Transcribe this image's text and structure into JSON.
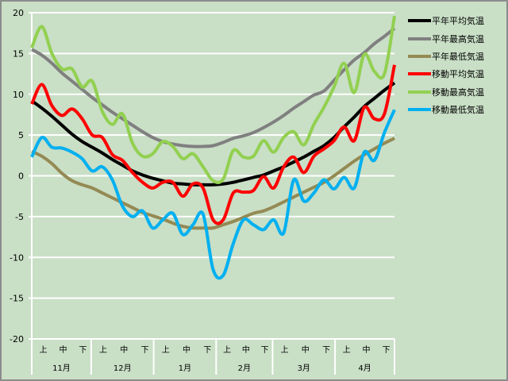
{
  "chart_data": {
    "type": "line",
    "title": "",
    "xlabel": "",
    "ylabel": "",
    "ylim": [
      -20,
      20
    ],
    "yticks": [
      "20",
      "15",
      "10",
      "5",
      "0",
      "-5",
      "-10",
      "-15",
      "-20"
    ],
    "ytick_values": [
      20,
      15,
      10,
      5,
      0,
      -5,
      -10,
      -15,
      -20
    ],
    "grid": true,
    "legend_position": "right",
    "x_decade_labels": [
      "上",
      "中",
      "下"
    ],
    "x_months": [
      "11月",
      "12月",
      "1月",
      "2月",
      "3月",
      "4月"
    ],
    "x": [
      "11/01",
      "11/06",
      "11/11",
      "11/16",
      "11/21",
      "11/26",
      "12/01",
      "12/06",
      "12/11",
      "12/16",
      "12/21",
      "12/26",
      "12/31",
      "01/05",
      "01/10",
      "01/15",
      "01/20",
      "01/25",
      "01/30",
      "02/04",
      "02/09",
      "02/14",
      "02/19",
      "02/24",
      "03/01",
      "03/06",
      "03/11",
      "03/16",
      "03/21",
      "03/26",
      "03/31",
      "04/05",
      "04/10",
      "04/15",
      "04/20",
      "04/25",
      "04/30"
    ],
    "series": [
      {
        "name": "平年平均気温",
        "color": "#000000",
        "values": [
          9.2,
          8.3,
          7.3,
          6.2,
          5.1,
          4.2,
          3.5,
          2.8,
          2.0,
          1.3,
          0.6,
          0.1,
          -0.3,
          -0.6,
          -0.9,
          -1.0,
          -1.1,
          -1.1,
          -1.1,
          -1.0,
          -0.8,
          -0.5,
          -0.2,
          0.1,
          0.6,
          1.1,
          1.7,
          2.3,
          3.0,
          3.7,
          4.7,
          6.0,
          7.2,
          8.5,
          9.5,
          10.5,
          11.4
        ]
      },
      {
        "name": "平年最高気温",
        "color": "#808080",
        "values": [
          15.5,
          14.8,
          13.8,
          12.6,
          11.6,
          10.6,
          9.6,
          8.7,
          7.8,
          7.0,
          6.2,
          5.4,
          4.7,
          4.2,
          3.9,
          3.7,
          3.6,
          3.6,
          3.7,
          4.1,
          4.6,
          4.9,
          5.3,
          5.9,
          6.6,
          7.4,
          8.3,
          9.1,
          9.9,
          10.4,
          11.7,
          13.0,
          14.2,
          15.1,
          16.2,
          17.1,
          18.1
        ]
      },
      {
        "name": "平年最低気温",
        "color": "#948a54",
        "values": [
          3.0,
          2.4,
          1.5,
          0.3,
          -0.6,
          -1.1,
          -1.5,
          -2.1,
          -2.7,
          -3.3,
          -3.9,
          -4.5,
          -4.9,
          -5.3,
          -5.8,
          -6.2,
          -6.4,
          -6.4,
          -6.4,
          -6.0,
          -5.6,
          -5.1,
          -4.6,
          -4.3,
          -3.8,
          -3.2,
          -2.6,
          -2.0,
          -1.4,
          -0.8,
          0.0,
          0.9,
          1.8,
          2.6,
          3.3,
          4.0,
          4.6
        ]
      },
      {
        "name": "移動平均気温",
        "color": "#ff0000",
        "values": [
          8.8,
          11.2,
          8.6,
          7.4,
          8.2,
          7.0,
          5.0,
          4.7,
          2.6,
          1.9,
          0.4,
          -0.8,
          -1.5,
          -0.8,
          -0.8,
          -2.5,
          -1.0,
          -1.5,
          -5.4,
          -5.4,
          -2.1,
          -2.0,
          -1.8,
          -0.1,
          -1.5,
          1.1,
          2.3,
          0.4,
          2.4,
          3.3,
          4.3,
          6.0,
          4.3,
          8.4,
          7.0,
          7.6,
          13.6
        ]
      },
      {
        "name": "移動最高気温",
        "color": "#92d050",
        "values": [
          15.7,
          18.3,
          15.0,
          13.1,
          13.1,
          10.9,
          11.6,
          7.9,
          6.3,
          7.6,
          4.0,
          2.4,
          2.7,
          4.2,
          3.6,
          2.1,
          2.7,
          1.1,
          -0.6,
          -0.4,
          3.1,
          2.3,
          2.4,
          4.3,
          2.9,
          4.7,
          5.4,
          3.8,
          6.3,
          8.4,
          10.9,
          13.8,
          10.2,
          14.9,
          12.8,
          12.5,
          19.6
        ]
      },
      {
        "name": "移動最低気温",
        "color": "#00b0f0",
        "values": [
          2.3,
          4.7,
          3.5,
          3.4,
          2.9,
          2.1,
          0.6,
          1.1,
          -0.5,
          -3.7,
          -5.0,
          -4.3,
          -6.4,
          -5.4,
          -4.6,
          -7.2,
          -6.0,
          -4.7,
          -11.5,
          -12.2,
          -8.3,
          -5.4,
          -6.0,
          -6.6,
          -5.4,
          -7.0,
          -0.5,
          -3.1,
          -2.1,
          -0.5,
          -1.6,
          -0.2,
          -1.5,
          2.9,
          1.9,
          5.3,
          8.1
        ]
      }
    ]
  }
}
